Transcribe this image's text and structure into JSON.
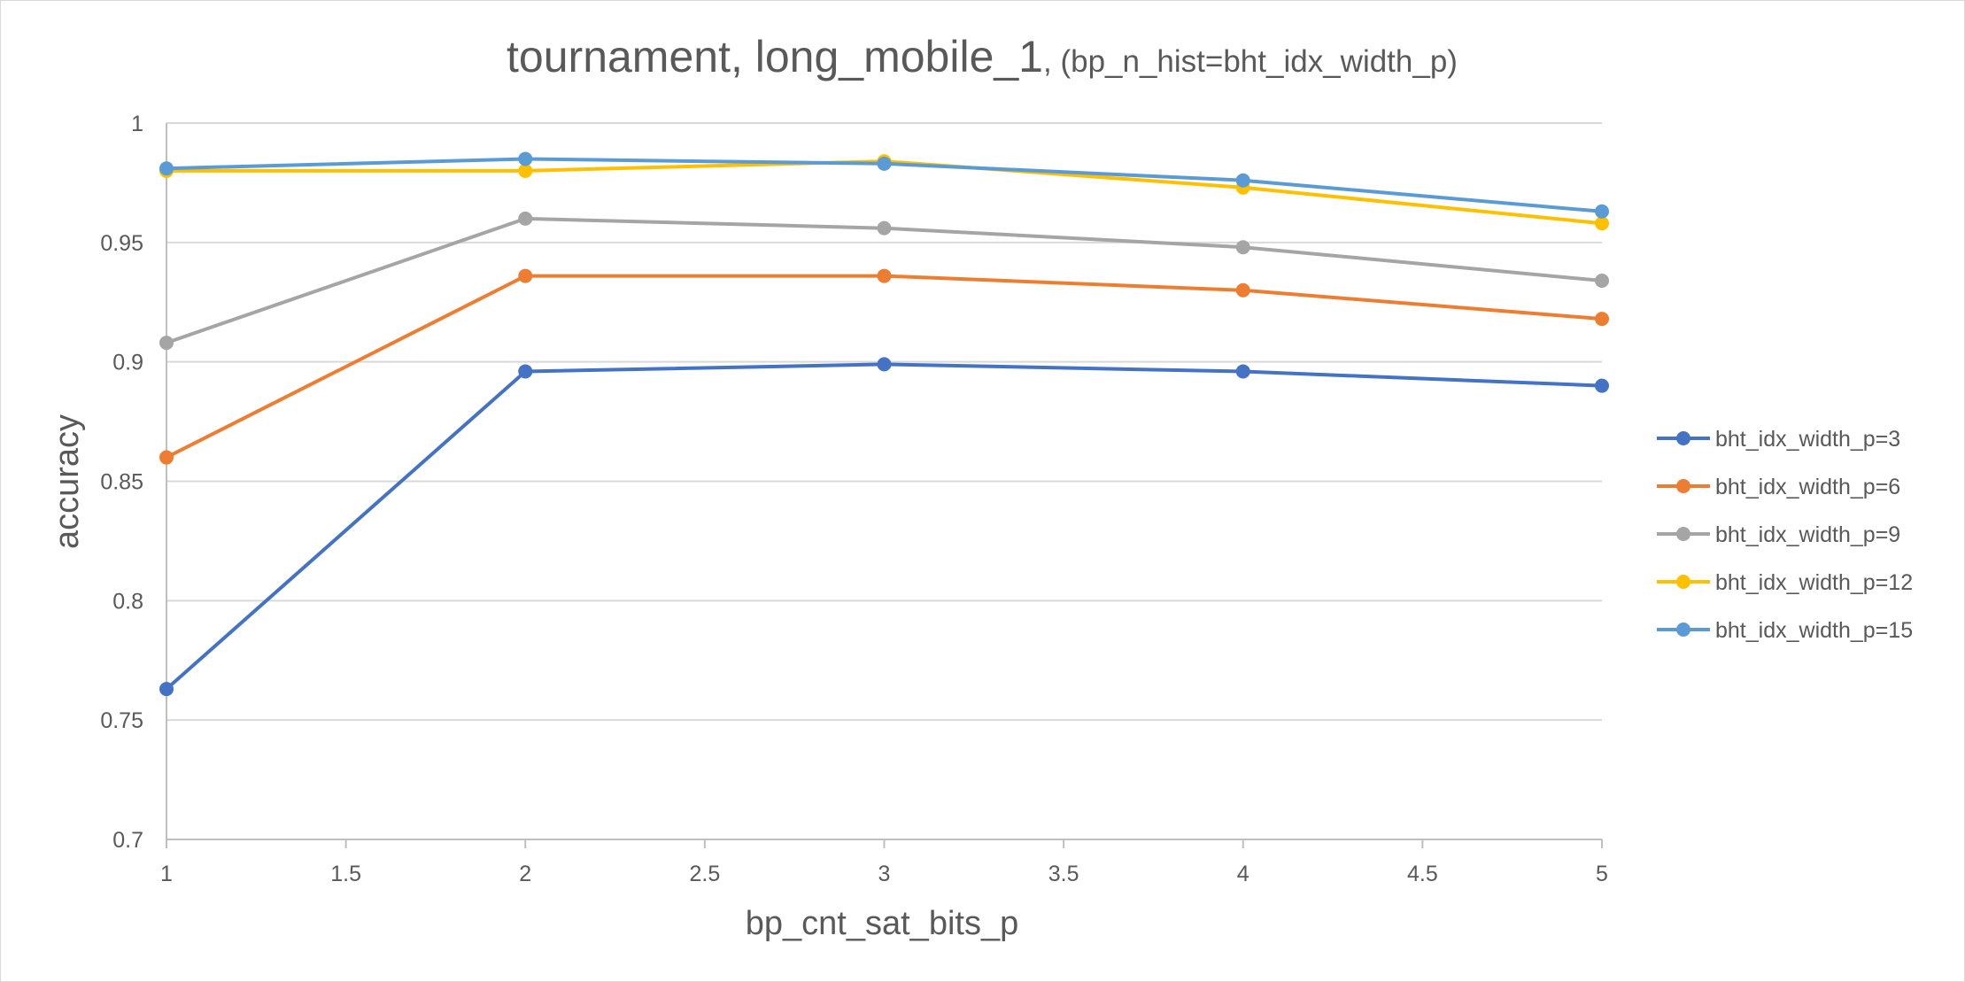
{
  "chart_data": {
    "type": "line",
    "title_main": "tournament, long_mobile_1",
    "title_sub": ", (bp_n_hist=bht_idx_width_p)",
    "xlabel": "bp_cnt_sat_bits_p",
    "ylabel": "accuracy",
    "xlim": [
      1,
      5
    ],
    "ylim": [
      0.7,
      1.0
    ],
    "x_ticks": [
      1,
      1.5,
      2,
      2.5,
      3,
      3.5,
      4,
      4.5,
      5
    ],
    "x_tick_labels": [
      "1",
      "1.5",
      "2",
      "2.5",
      "3",
      "3.5",
      "4",
      "4.5",
      "5"
    ],
    "y_ticks": [
      0.7,
      0.75,
      0.8,
      0.85,
      0.9,
      0.95,
      1.0
    ],
    "y_tick_labels": [
      "0.7",
      "0.75",
      "0.8",
      "0.85",
      "0.9",
      "0.95",
      "1"
    ],
    "grid": true,
    "legend_position": "right",
    "x": [
      1,
      2,
      3,
      4,
      5
    ],
    "series": [
      {
        "name": "bht_idx_width_p=3",
        "color": "#4472C4",
        "values": [
          0.763,
          0.896,
          0.899,
          0.896,
          0.89
        ]
      },
      {
        "name": "bht_idx_width_p=6",
        "color": "#ED7D31",
        "values": [
          0.86,
          0.936,
          0.936,
          0.93,
          0.918
        ]
      },
      {
        "name": "bht_idx_width_p=9",
        "color": "#A5A5A5",
        "values": [
          0.908,
          0.96,
          0.956,
          0.948,
          0.934
        ]
      },
      {
        "name": "bht_idx_width_p=12",
        "color": "#FFC000",
        "values": [
          0.98,
          0.98,
          0.984,
          0.973,
          0.958
        ]
      },
      {
        "name": "bht_idx_width_p=15",
        "color": "#5B9BD5",
        "values": [
          0.981,
          0.985,
          0.983,
          0.976,
          0.963
        ]
      }
    ]
  }
}
